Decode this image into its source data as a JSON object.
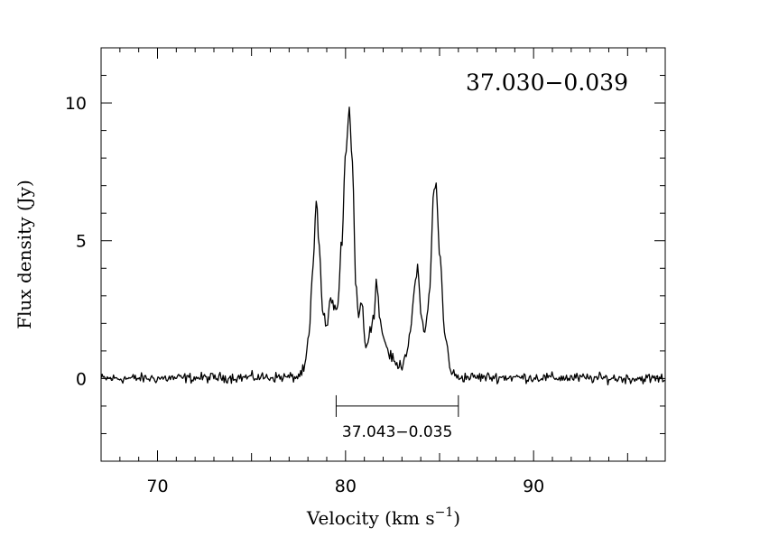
{
  "chart_data": {
    "type": "line",
    "title": "37.030−0.039",
    "xlabel": "Velocity (km s",
    "xlabel_sup": "−1",
    "xlabel_close": ")",
    "ylabel": "Flux density (Jy)",
    "xlim": [
      67,
      97
    ],
    "ylim": [
      -3,
      12
    ],
    "x_ticks": [
      70,
      80,
      90
    ],
    "y_ticks": [
      0,
      5,
      10
    ],
    "grid": false,
    "colors": {
      "line": "#000000",
      "axes": "#000000",
      "background": "#ffffff"
    },
    "annotation": {
      "text": "37.043−0.035",
      "x_start": 79.5,
      "x_end": 86.0,
      "y": -1.0
    },
    "series": [
      {
        "noise_level": 0.13,
        "points": [
          [
            67.0,
            0.0
          ],
          [
            77.4,
            0.05
          ],
          [
            77.8,
            0.3
          ],
          [
            78.05,
            1.5
          ],
          [
            78.25,
            3.8
          ],
          [
            78.45,
            6.4
          ],
          [
            78.6,
            4.8
          ],
          [
            78.8,
            2.3
          ],
          [
            79.0,
            1.9
          ],
          [
            79.25,
            3.0
          ],
          [
            79.4,
            2.5
          ],
          [
            79.6,
            2.6
          ],
          [
            79.8,
            5.0
          ],
          [
            80.0,
            8.2
          ],
          [
            80.2,
            9.8
          ],
          [
            80.35,
            8.0
          ],
          [
            80.55,
            3.5
          ],
          [
            80.7,
            2.3
          ],
          [
            80.85,
            2.8
          ],
          [
            81.1,
            1.0
          ],
          [
            81.3,
            1.9
          ],
          [
            81.5,
            2.2
          ],
          [
            81.65,
            3.6
          ],
          [
            81.85,
            2.0
          ],
          [
            82.1,
            1.3
          ],
          [
            82.4,
            0.8
          ],
          [
            82.7,
            0.5
          ],
          [
            83.0,
            0.5
          ],
          [
            83.2,
            0.9
          ],
          [
            83.45,
            1.6
          ],
          [
            83.7,
            3.5
          ],
          [
            83.85,
            3.95
          ],
          [
            84.0,
            2.4
          ],
          [
            84.2,
            1.6
          ],
          [
            84.45,
            3.0
          ],
          [
            84.7,
            6.8
          ],
          [
            84.8,
            7.2
          ],
          [
            85.0,
            4.5
          ],
          [
            85.3,
            1.5
          ],
          [
            85.6,
            0.3
          ],
          [
            85.9,
            0.05
          ],
          [
            97.0,
            0.0
          ]
        ]
      }
    ]
  }
}
